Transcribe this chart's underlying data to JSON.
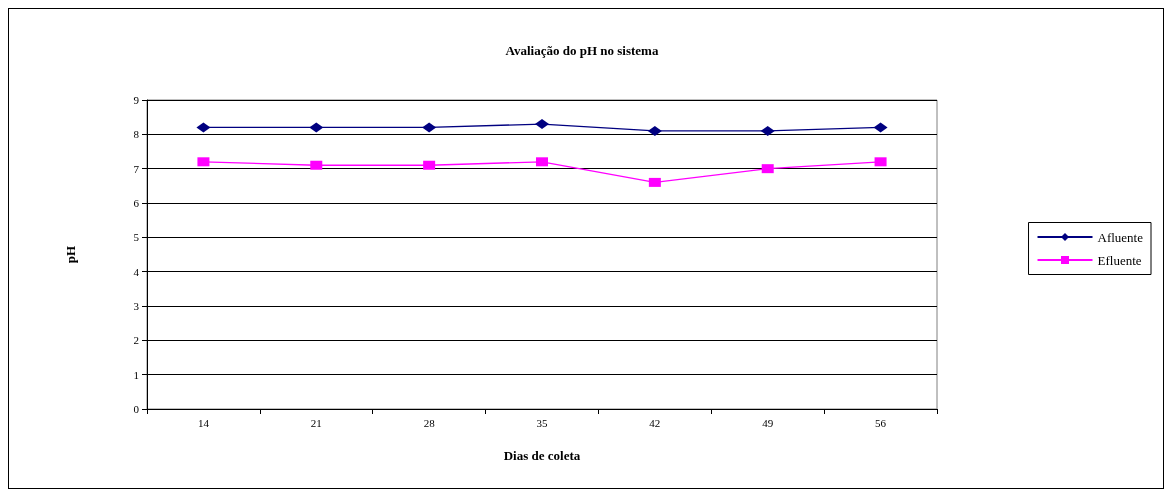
{
  "chart_data": {
    "type": "line",
    "title": "Avaliação do pH no sistema",
    "xlabel": "Dias de coleta",
    "ylabel": "pH",
    "categories": [
      "14",
      "21",
      "28",
      "35",
      "42",
      "49",
      "56"
    ],
    "series": [
      {
        "name": "Afluente",
        "color": "#000080",
        "marker": "diamond",
        "values": [
          8.2,
          8.2,
          8.2,
          8.3,
          8.1,
          8.1,
          8.2
        ]
      },
      {
        "name": "Efluente",
        "color": "#ff00ff",
        "marker": "square",
        "values": [
          7.2,
          7.1,
          7.1,
          7.2,
          6.6,
          7.0,
          7.2
        ]
      }
    ],
    "ylim": [
      0,
      9
    ],
    "yticks": [
      0,
      1,
      2,
      3,
      4,
      5,
      6,
      7,
      8,
      9
    ],
    "grid": "y",
    "legend": "right"
  }
}
